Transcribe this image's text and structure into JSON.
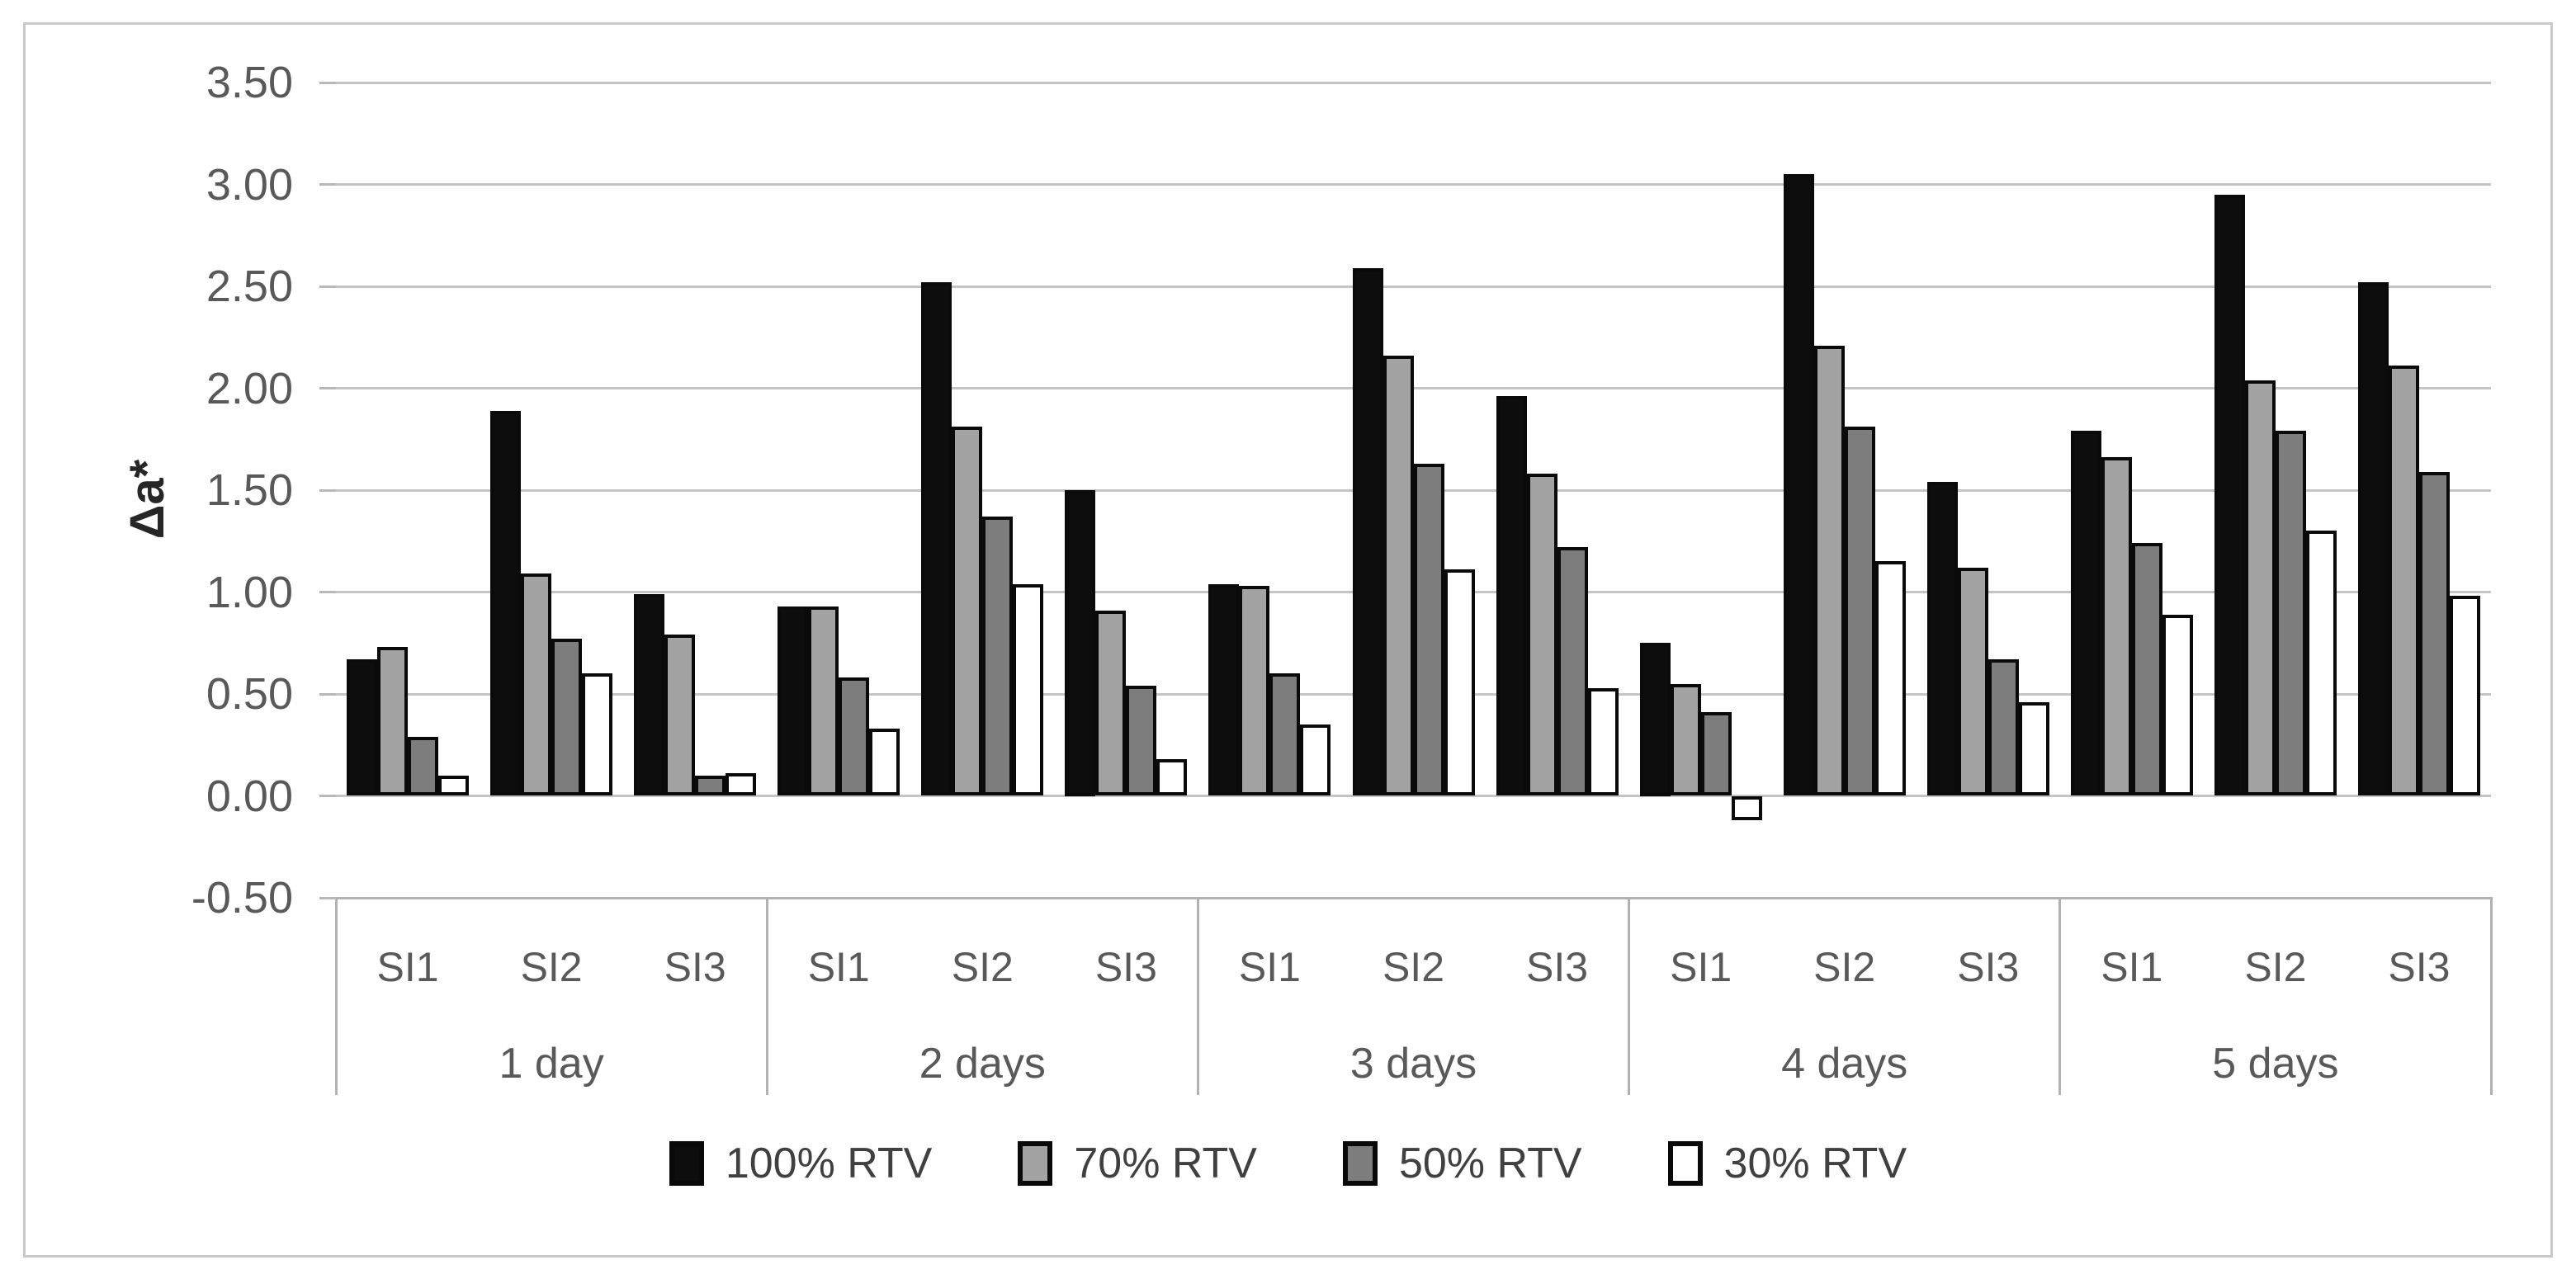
{
  "chart_data": {
    "type": "bar",
    "title": "",
    "xlabel": "",
    "ylabel": "Δa*",
    "ylim": [
      -0.5,
      3.5
    ],
    "ytick_step": 0.5,
    "grid": true,
    "legend_position": "bottom",
    "y_axis_ticks": [
      {
        "label": "3.50",
        "value": 3.5
      },
      {
        "label": "3.00",
        "value": 3.0
      },
      {
        "label": "2.50",
        "value": 2.5
      },
      {
        "label": "2.00",
        "value": 2.0
      },
      {
        "label": "1.50",
        "value": 1.5
      },
      {
        "label": "1.00",
        "value": 1.0
      },
      {
        "label": "0.50",
        "value": 0.5
      },
      {
        "label": "0.00",
        "value": 0.0
      },
      {
        "label": "-0.50",
        "value": -0.5
      }
    ],
    "categories": [
      "SI1",
      "SI2",
      "SI3",
      "SI1",
      "SI2",
      "SI3",
      "SI1",
      "SI2",
      "SI3",
      "SI1",
      "SI2",
      "SI3",
      "SI1",
      "SI2",
      "SI3"
    ],
    "group_labels": [
      "1 day",
      "2 days",
      "3 days",
      "4 days",
      "5 days"
    ],
    "categories_per_group": 3,
    "series": [
      {
        "name": "100% RTV",
        "color": "#0d0d0d",
        "values": [
          0.67,
          1.89,
          0.99,
          0.93,
          2.52,
          1.5,
          1.04,
          2.59,
          1.96,
          0.75,
          3.05,
          1.54,
          1.79,
          2.95,
          2.52
        ]
      },
      {
        "name": "70% RTV",
        "color": "#a3a3a3",
        "values": [
          0.73,
          1.09,
          0.79,
          0.93,
          1.81,
          0.91,
          1.03,
          2.16,
          1.58,
          0.55,
          2.21,
          1.12,
          1.66,
          2.04,
          2.11
        ]
      },
      {
        "name": "50% RTV",
        "color": "#7d7d7d",
        "values": [
          0.29,
          0.77,
          0.1,
          0.58,
          1.37,
          0.54,
          0.6,
          1.63,
          1.22,
          0.41,
          1.81,
          0.67,
          1.24,
          1.79,
          1.59
        ]
      },
      {
        "name": "30% RTV",
        "color": "#ffffff",
        "values": [
          0.1,
          0.6,
          0.11,
          0.33,
          1.04,
          0.18,
          0.35,
          1.11,
          0.53,
          -0.12,
          1.15,
          0.46,
          0.89,
          1.3,
          0.98
        ]
      }
    ]
  }
}
